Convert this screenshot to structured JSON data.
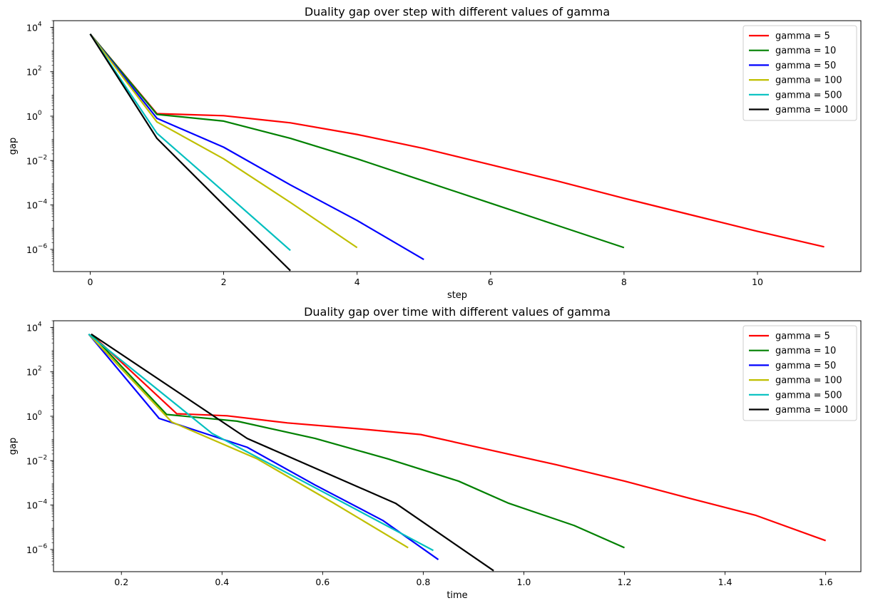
{
  "chart_data": [
    {
      "type": "line",
      "title": "Duality gap over step with different values of gamma",
      "xlabel": "step",
      "ylabel": "gap",
      "xlim": [
        -0.55,
        11.55
      ],
      "ylim": [
        1e-07,
        20000
      ],
      "yscale": "log",
      "xticks": [
        0,
        2,
        4,
        6,
        8,
        10
      ],
      "xtick_labels": [
        "0",
        "2",
        "4",
        "6",
        "8",
        "10"
      ],
      "yticks": [
        1e-06,
        0.0001,
        0.01,
        1,
        100,
        10000
      ],
      "ytick_bases": [
        "10",
        "10",
        "10",
        "10",
        "10",
        "10"
      ],
      "ytick_exps": [
        "−6",
        "−4",
        "−2",
        "0",
        "2",
        "4"
      ],
      "grid": false,
      "legend_position": "top-right",
      "series": [
        {
          "name": "gamma = 5",
          "color": "#ff0000",
          "x": [
            0,
            1,
            2,
            3,
            4,
            5,
            6,
            7,
            8,
            9,
            10,
            11
          ],
          "y": [
            5000,
            1.3,
            1.05,
            0.5,
            0.15,
            0.035,
            0.0065,
            0.0012,
            0.0002,
            3.6e-05,
            6.5e-06,
            1.3e-06
          ]
        },
        {
          "name": "gamma = 10",
          "color": "#008000",
          "x": [
            0,
            1,
            2,
            3,
            4,
            5,
            6,
            7,
            8
          ],
          "y": [
            5000,
            1.2,
            0.6,
            0.1,
            0.012,
            0.0012,
            0.00012,
            1.2e-05,
            1.2e-06
          ]
        },
        {
          "name": "gamma = 50",
          "color": "#0000ff",
          "x": [
            0,
            1,
            2,
            3,
            4,
            5
          ],
          "y": [
            5000,
            0.8,
            0.04,
            0.0008,
            2e-05,
            3.5e-07
          ]
        },
        {
          "name": "gamma = 100",
          "color": "#bfbf00",
          "x": [
            0,
            1,
            2,
            3,
            4
          ],
          "y": [
            5000,
            0.55,
            0.012,
            0.00013,
            1.2e-06
          ]
        },
        {
          "name": "gamma = 500",
          "color": "#00bfbf",
          "x": [
            0,
            1,
            2,
            3
          ],
          "y": [
            5000,
            0.17,
            0.0004,
            9e-07
          ]
        },
        {
          "name": "gamma = 1000",
          "color": "#000000",
          "x": [
            0,
            1,
            2,
            3
          ],
          "y": [
            5000,
            0.1,
            0.0001,
            1.1e-07
          ]
        }
      ]
    },
    {
      "type": "line",
      "title": "Duality gap over time with different values of gamma",
      "xlabel": "time",
      "ylabel": "gap",
      "xlim": [
        0.065,
        1.67
      ],
      "ylim": [
        1e-07,
        20000
      ],
      "yscale": "log",
      "xticks": [
        0.2,
        0.4,
        0.6,
        0.8,
        1.0,
        1.2,
        1.4,
        1.6
      ],
      "xtick_labels": [
        "0.2",
        "0.4",
        "0.6",
        "0.8",
        "1.0",
        "1.2",
        "1.4",
        "1.6"
      ],
      "yticks": [
        1e-06,
        0.0001,
        0.01,
        1,
        100,
        10000
      ],
      "ytick_bases": [
        "10",
        "10",
        "10",
        "10",
        "10",
        "10"
      ],
      "ytick_exps": [
        "−6",
        "−4",
        "−2",
        "0",
        "2",
        "4"
      ],
      "grid": false,
      "legend_position": "top-right",
      "series": [
        {
          "name": "gamma = 5",
          "color": "#ff0000",
          "x": [
            0.14,
            0.31,
            0.41,
            0.53,
            0.69,
            0.795,
            0.92,
            1.065,
            1.2,
            1.33,
            1.46,
            1.6
          ],
          "y": [
            5000,
            1.3,
            1.05,
            0.5,
            0.25,
            0.15,
            0.035,
            0.0065,
            0.0012,
            0.0002,
            3.5e-05,
            2.5e-06
          ]
        },
        {
          "name": "gamma = 10",
          "color": "#008000",
          "x": [
            0.14,
            0.29,
            0.43,
            0.585,
            0.73,
            0.87,
            0.97,
            1.1,
            1.2
          ],
          "y": [
            5000,
            1.2,
            0.6,
            0.1,
            0.012,
            0.0012,
            0.00012,
            1.2e-05,
            1.2e-06
          ]
        },
        {
          "name": "gamma = 50",
          "color": "#0000ff",
          "x": [
            0.135,
            0.275,
            0.45,
            0.585,
            0.72,
            0.83
          ],
          "y": [
            5000,
            0.8,
            0.04,
            0.0008,
            2e-05,
            3.5e-07
          ]
        },
        {
          "name": "gamma = 100",
          "color": "#bfbf00",
          "x": [
            0.135,
            0.3,
            0.47,
            0.62,
            0.77
          ],
          "y": [
            5000,
            0.55,
            0.012,
            0.00013,
            1.2e-06
          ]
        },
        {
          "name": "gamma = 500",
          "color": "#00bfbf",
          "x": [
            0.135,
            0.38,
            0.6,
            0.82
          ],
          "y": [
            5000,
            0.17,
            0.0004,
            9e-07
          ]
        },
        {
          "name": "gamma = 1000",
          "color": "#000000",
          "x": [
            0.14,
            0.45,
            0.745,
            0.94
          ],
          "y": [
            5000,
            0.1,
            0.00012,
            1.1e-07
          ]
        }
      ]
    }
  ]
}
